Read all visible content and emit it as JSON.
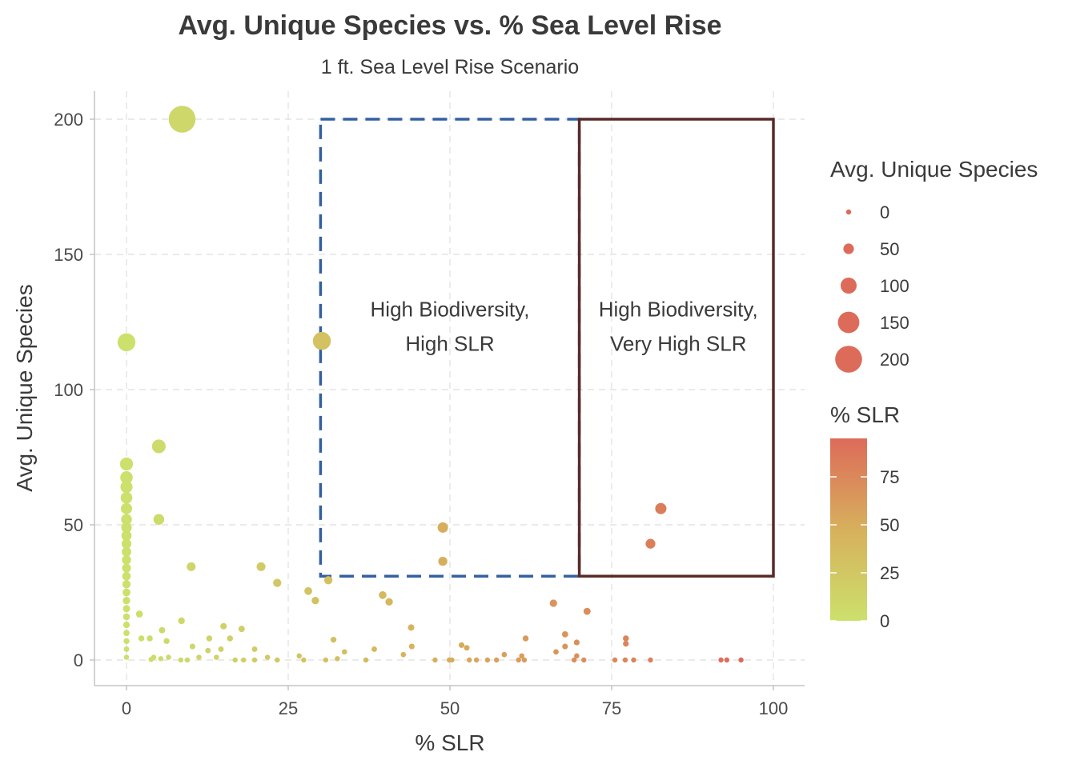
{
  "chart_data": {
    "type": "scatter",
    "title": "Avg. Unique Species vs. % Sea Level Rise",
    "subtitle": "1 ft. Sea Level Rise Scenario",
    "xlabel": "% SLR",
    "ylabel": "Avg. Unique Species",
    "xlim": [
      -10,
      110
    ],
    "ylim": [
      -10,
      210
    ],
    "x_ticks": [
      0,
      25,
      50,
      75,
      100
    ],
    "y_ticks": [
      0,
      50,
      100,
      150,
      200
    ],
    "grid": true,
    "legend_placement": "right",
    "size_legend": {
      "title": "Avg. Unique Species",
      "values": [
        0,
        50,
        100,
        150,
        200
      ]
    },
    "color_legend": {
      "title": "% SLR",
      "ticks": [
        0,
        25,
        50,
        75
      ],
      "range": [
        0,
        95
      ],
      "low_color": "#cce06c",
      "mid_color": "#d7b05c",
      "high_color": "#dd6b5a"
    },
    "points": [
      {
        "x": 8.6,
        "y": 200
      },
      {
        "x": 0,
        "y": 117.5
      },
      {
        "x": 30.2,
        "y": 118
      },
      {
        "x": 5,
        "y": 79
      },
      {
        "x": 0,
        "y": 72.5
      },
      {
        "x": 0,
        "y": 67.5
      },
      {
        "x": 0,
        "y": 64
      },
      {
        "x": 0,
        "y": 60
      },
      {
        "x": 0,
        "y": 56
      },
      {
        "x": 0,
        "y": 52
      },
      {
        "x": 0,
        "y": 49
      },
      {
        "x": 0,
        "y": 46
      },
      {
        "x": 0,
        "y": 43
      },
      {
        "x": 0,
        "y": 40
      },
      {
        "x": 0,
        "y": 37
      },
      {
        "x": 0,
        "y": 34
      },
      {
        "x": 0,
        "y": 31
      },
      {
        "x": 0,
        "y": 28
      },
      {
        "x": 0,
        "y": 25
      },
      {
        "x": 0,
        "y": 22
      },
      {
        "x": 0,
        "y": 19
      },
      {
        "x": 0,
        "y": 16
      },
      {
        "x": 0,
        "y": 13
      },
      {
        "x": 0,
        "y": 10
      },
      {
        "x": 0,
        "y": 7
      },
      {
        "x": 0,
        "y": 4
      },
      {
        "x": 0,
        "y": 1
      },
      {
        "x": 5,
        "y": 52
      },
      {
        "x": 10,
        "y": 34.5
      },
      {
        "x": 20.8,
        "y": 34.5
      },
      {
        "x": 23.3,
        "y": 28.5
      },
      {
        "x": 28.1,
        "y": 25.5
      },
      {
        "x": 29.2,
        "y": 22
      },
      {
        "x": 31.2,
        "y": 29.5
      },
      {
        "x": 48.9,
        "y": 49
      },
      {
        "x": 48.9,
        "y": 36.5
      },
      {
        "x": 39.6,
        "y": 24
      },
      {
        "x": 40.6,
        "y": 21.5
      },
      {
        "x": 66,
        "y": 21
      },
      {
        "x": 71.2,
        "y": 18
      },
      {
        "x": 82.6,
        "y": 56
      },
      {
        "x": 81,
        "y": 43
      },
      {
        "x": 2,
        "y": 17
      },
      {
        "x": 8.5,
        "y": 14.5
      },
      {
        "x": 15,
        "y": 12.5
      },
      {
        "x": 17.8,
        "y": 11.5
      },
      {
        "x": 5.5,
        "y": 11
      },
      {
        "x": 44,
        "y": 12
      },
      {
        "x": 67.8,
        "y": 9.5
      },
      {
        "x": 77.2,
        "y": 8
      },
      {
        "x": 2.3,
        "y": 8
      },
      {
        "x": 3.6,
        "y": 8
      },
      {
        "x": 6.2,
        "y": 7
      },
      {
        "x": 12.8,
        "y": 8
      },
      {
        "x": 16,
        "y": 8
      },
      {
        "x": 32,
        "y": 7.5
      },
      {
        "x": 61.7,
        "y": 8
      },
      {
        "x": 69.6,
        "y": 6.5
      },
      {
        "x": 10.2,
        "y": 5
      },
      {
        "x": 12.6,
        "y": 3.5
      },
      {
        "x": 14.6,
        "y": 4
      },
      {
        "x": 19.8,
        "y": 4
      },
      {
        "x": 33.7,
        "y": 3
      },
      {
        "x": 38.3,
        "y": 4
      },
      {
        "x": 44.1,
        "y": 5
      },
      {
        "x": 51.8,
        "y": 5.5
      },
      {
        "x": 52.6,
        "y": 4.5
      },
      {
        "x": 67.8,
        "y": 5
      },
      {
        "x": 66.4,
        "y": 3
      },
      {
        "x": 77.2,
        "y": 6
      },
      {
        "x": 42.8,
        "y": 2
      },
      {
        "x": 58.4,
        "y": 2
      },
      {
        "x": 61.1,
        "y": 1.5
      },
      {
        "x": 69.6,
        "y": 1.5
      },
      {
        "x": 4.2,
        "y": 1
      },
      {
        "x": 5.3,
        "y": 0.5
      },
      {
        "x": 6.5,
        "y": 1
      },
      {
        "x": 3.8,
        "y": 0.2
      },
      {
        "x": 8.4,
        "y": 0
      },
      {
        "x": 9.4,
        "y": 0
      },
      {
        "x": 11.2,
        "y": 1
      },
      {
        "x": 13.9,
        "y": 1
      },
      {
        "x": 16.8,
        "y": 0
      },
      {
        "x": 18.1,
        "y": 0
      },
      {
        "x": 19.8,
        "y": 0
      },
      {
        "x": 21.8,
        "y": 1
      },
      {
        "x": 23.3,
        "y": 0
      },
      {
        "x": 26.7,
        "y": 1.5
      },
      {
        "x": 27.4,
        "y": 0
      },
      {
        "x": 30.8,
        "y": 0
      },
      {
        "x": 32.6,
        "y": 0.5
      },
      {
        "x": 37,
        "y": 0
      },
      {
        "x": 47.7,
        "y": 0
      },
      {
        "x": 49.9,
        "y": 0
      },
      {
        "x": 50.3,
        "y": 0
      },
      {
        "x": 53,
        "y": 0
      },
      {
        "x": 54.1,
        "y": 0
      },
      {
        "x": 55.8,
        "y": 0
      },
      {
        "x": 57.2,
        "y": 0
      },
      {
        "x": 60.6,
        "y": 0
      },
      {
        "x": 61.5,
        "y": 0
      },
      {
        "x": 69.2,
        "y": 0
      },
      {
        "x": 70.7,
        "y": 0
      },
      {
        "x": 75.5,
        "y": 0
      },
      {
        "x": 77.1,
        "y": 0
      },
      {
        "x": 78.4,
        "y": 0
      },
      {
        "x": 81,
        "y": 0
      },
      {
        "x": 91.9,
        "y": 0
      },
      {
        "x": 92.8,
        "y": 0
      },
      {
        "x": 95,
        "y": 0
      }
    ],
    "annotations": [
      {
        "label_lines": [
          "High Biodiversity,",
          "High SLR"
        ],
        "rect": {
          "xmin": 30,
          "xmax": 70,
          "ymin": 31,
          "ymax": 200
        },
        "style": "dashed",
        "color": "#3461a0",
        "label_anchor": {
          "x": 50,
          "y": 127
        }
      },
      {
        "label_lines": [
          "High Biodiversity,",
          "Very High SLR"
        ],
        "rect": {
          "xmin": 70,
          "xmax": 100,
          "ymin": 31,
          "ymax": 200
        },
        "style": "solid",
        "color": "#5a2a28",
        "label_anchor": {
          "x": 85.3,
          "y": 127
        }
      }
    ]
  }
}
